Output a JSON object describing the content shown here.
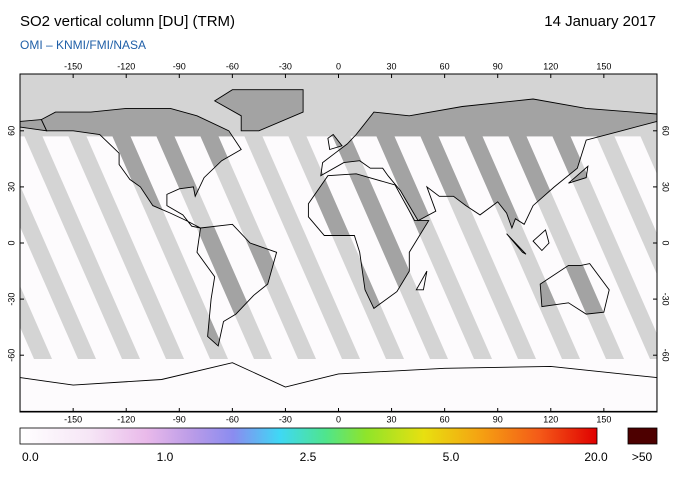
{
  "header": {
    "title": "SO2 vertical column [DU] (TRM)",
    "source": "OMI  –  KNMI/FMI/NASA",
    "date": "14 January 2017"
  },
  "map": {
    "lon_ticks": [
      -150,
      -120,
      -90,
      -60,
      -30,
      0,
      30,
      60,
      90,
      120,
      150
    ],
    "lat_ticks": [
      60,
      30,
      0,
      -30,
      -60
    ]
  },
  "legend": {
    "labels": [
      "0.0",
      "1.0",
      "2.5",
      "5.0",
      "20.0",
      ">50"
    ]
  }
}
